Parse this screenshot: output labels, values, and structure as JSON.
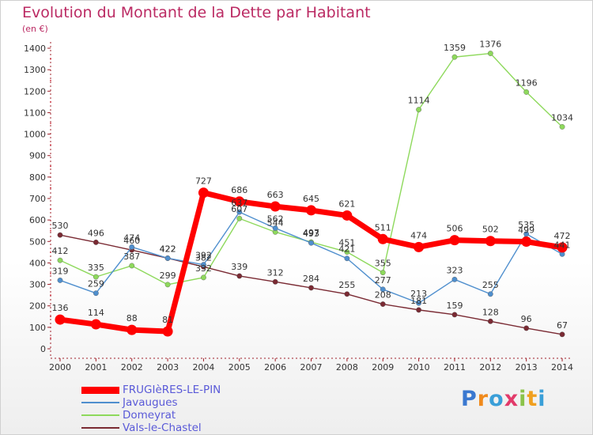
{
  "title": "Evolution du Montant de la Dette par Habitant",
  "subtitle": "(en €)",
  "brand": "Proxiti",
  "chart_data": {
    "type": "line",
    "x": [
      "2000",
      "2001",
      "2002",
      "2003",
      "2004",
      "2005",
      "2006",
      "2007",
      "2008",
      "2009",
      "2010",
      "2011",
      "2012",
      "2013",
      "2014"
    ],
    "ylim": [
      0,
      1400
    ],
    "yticks": [
      "0",
      "100",
      "200",
      "300",
      "400",
      "500",
      "600",
      "700",
      "800",
      "900",
      "1000",
      "1100",
      "1200",
      "1300",
      "1400"
    ],
    "grid": false,
    "legend_position": "bottom-left",
    "series": [
      {
        "name": "Vals-le-Chastel",
        "color": "#7a2a33",
        "values": [
          530,
          496,
          460,
          422,
          382,
          339,
          312,
          284,
          255,
          208,
          181,
          159,
          128,
          96,
          67
        ]
      },
      {
        "name": "Domeyrat",
        "color": "#8ed95c",
        "values": [
          412,
          335,
          387,
          299,
          332,
          607,
          544,
          497,
          451,
          355,
          1114,
          1359,
          1376,
          1196,
          1034
        ]
      },
      {
        "name": "Javaugues",
        "color": "#4f8fce",
        "values": [
          319,
          259,
          474,
          422,
          392,
          637,
          562,
          493,
          421,
          277,
          213,
          323,
          255,
          535,
          441
        ]
      },
      {
        "name": "FRUGIèRES-LE-PIN",
        "color": "#ff0000",
        "values": [
          136,
          114,
          88,
          81,
          727,
          686,
          663,
          645,
          621,
          511,
          474,
          506,
          502,
          499,
          472
        ]
      }
    ]
  }
}
